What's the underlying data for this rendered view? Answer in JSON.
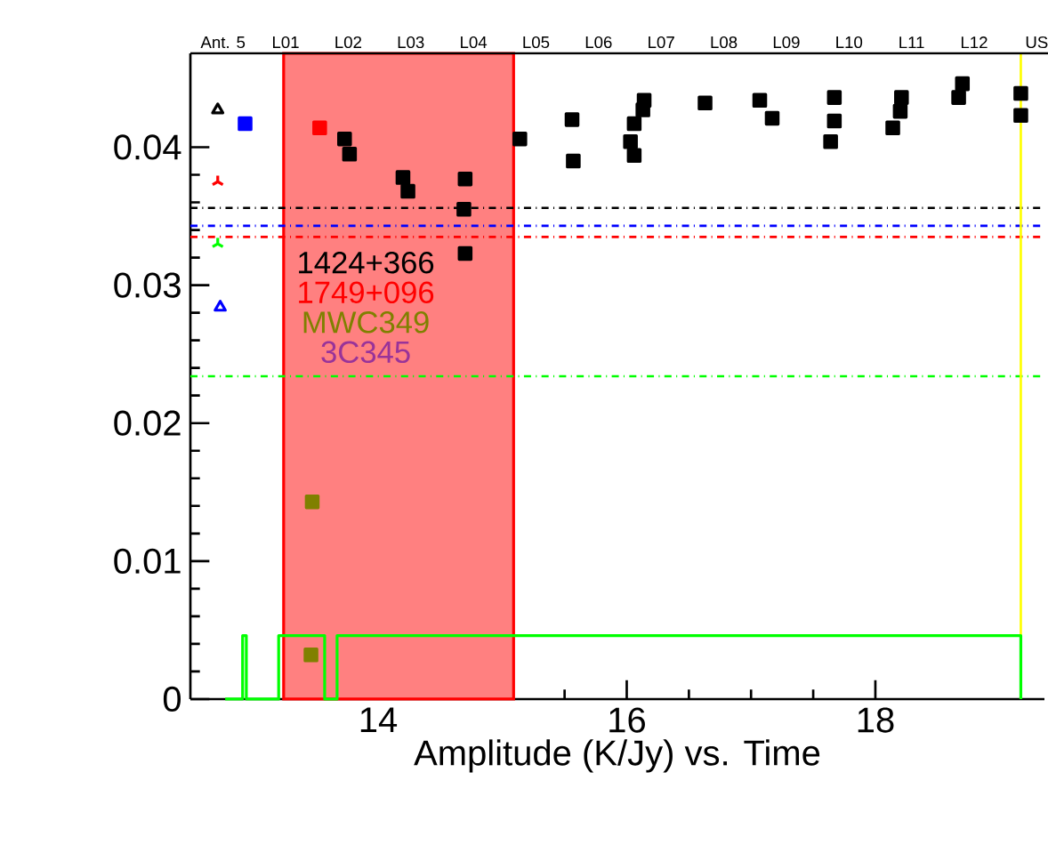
{
  "chart_data": {
    "type": "scatter",
    "xlabel": "Amplitude (K/Jy)   vs.   Time",
    "xlim": [
      12.49,
      19.36
    ],
    "ylim": [
      0,
      0.0468
    ],
    "xticks": [
      14,
      16,
      18
    ],
    "yticks": [
      0,
      0.01,
      0.02,
      0.03,
      0.04
    ],
    "annotations": [
      "Ant. 5",
      "L01",
      "L02",
      "L03",
      "L04",
      "L05",
      "L06",
      "L07",
      "L08",
      "L09",
      "L10",
      "L11",
      "L12",
      "US"
    ],
    "legend": "left",
    "marker": "square",
    "series": [
      {
        "name": "1424+366",
        "color": "#000000",
        "x": [
          13.73,
          13.77,
          14.2,
          14.24,
          14.7,
          14.69,
          14.7,
          15.14,
          15.56,
          15.57,
          16.14,
          16.13,
          16.06,
          16.03,
          16.06,
          16.63,
          17.07,
          17.17,
          17.67,
          17.67,
          17.64,
          18.21,
          18.2,
          18.14,
          18.7,
          18.67,
          19.17,
          19.17
        ],
        "values": [
          0.0406,
          0.0395,
          0.0378,
          0.0368,
          0.0377,
          0.0355,
          0.0323,
          0.0406,
          0.042,
          0.039,
          0.0434,
          0.0427,
          0.0417,
          0.0404,
          0.0394,
          0.0432,
          0.0434,
          0.0421,
          0.0436,
          0.0419,
          0.0404,
          0.0436,
          0.0426,
          0.0414,
          0.0446,
          0.0436,
          0.0439,
          0.0423
        ]
      },
      {
        "name": "1749+096",
        "color": "#ff0000",
        "x": [
          13.53
        ],
        "values": [
          0.0414
        ]
      },
      {
        "name": "MWC349",
        "color": "#808000",
        "x": [
          13.47,
          13.46
        ],
        "values": [
          0.0143,
          0.0032
        ]
      },
      {
        "name": "3C345",
        "color": "#993399"
      },
      {
        "color": "#000000",
        "marker": "triangle",
        "x": [
          12.71
        ],
        "values": [
          0.0427
        ]
      },
      {
        "color": "#0000ff",
        "x": [
          12.93
        ],
        "values": [
          0.0417
        ]
      },
      {
        "color": "#ff0000",
        "marker": "cross",
        "x": [
          12.71
        ],
        "values": [
          0.0375
        ]
      },
      {
        "color": "#00ff00",
        "marker": "cross",
        "x": [
          12.71
        ],
        "values": [
          0.033
        ]
      },
      {
        "color": "#0000ff",
        "marker": "triangle",
        "x": [
          12.73
        ],
        "values": [
          0.0284
        ]
      },
      {
        "type": "step",
        "color": "#00ff00",
        "marker": "none",
        "x": [
          12.77,
          12.91,
          12.94,
          13.2,
          13.57,
          13.67,
          19.17
        ],
        "values": [
          0,
          0.0046,
          0,
          0.0046,
          0,
          0.0046,
          0
        ]
      }
    ],
    "ref_lines": [
      {
        "axis": "y",
        "value": 0.0356,
        "color": "#000000",
        "line_style": "dotted"
      },
      {
        "axis": "y",
        "value": 0.0343,
        "color": "#0000ff",
        "line_style": "dotted"
      },
      {
        "axis": "y",
        "value": 0.0335,
        "color": "#ff0000",
        "line_style": "dotted"
      },
      {
        "axis": "y",
        "value": 0.0234,
        "color": "#00ff00",
        "line_style": "dotted"
      },
      {
        "axis": "x",
        "value": 19.17,
        "color": "#ffff00",
        "line_style": "solid"
      }
    ],
    "bands": [
      {
        "axis": "x",
        "from": 13.24,
        "to": 15.09,
        "color": "#ff8080"
      }
    ]
  }
}
